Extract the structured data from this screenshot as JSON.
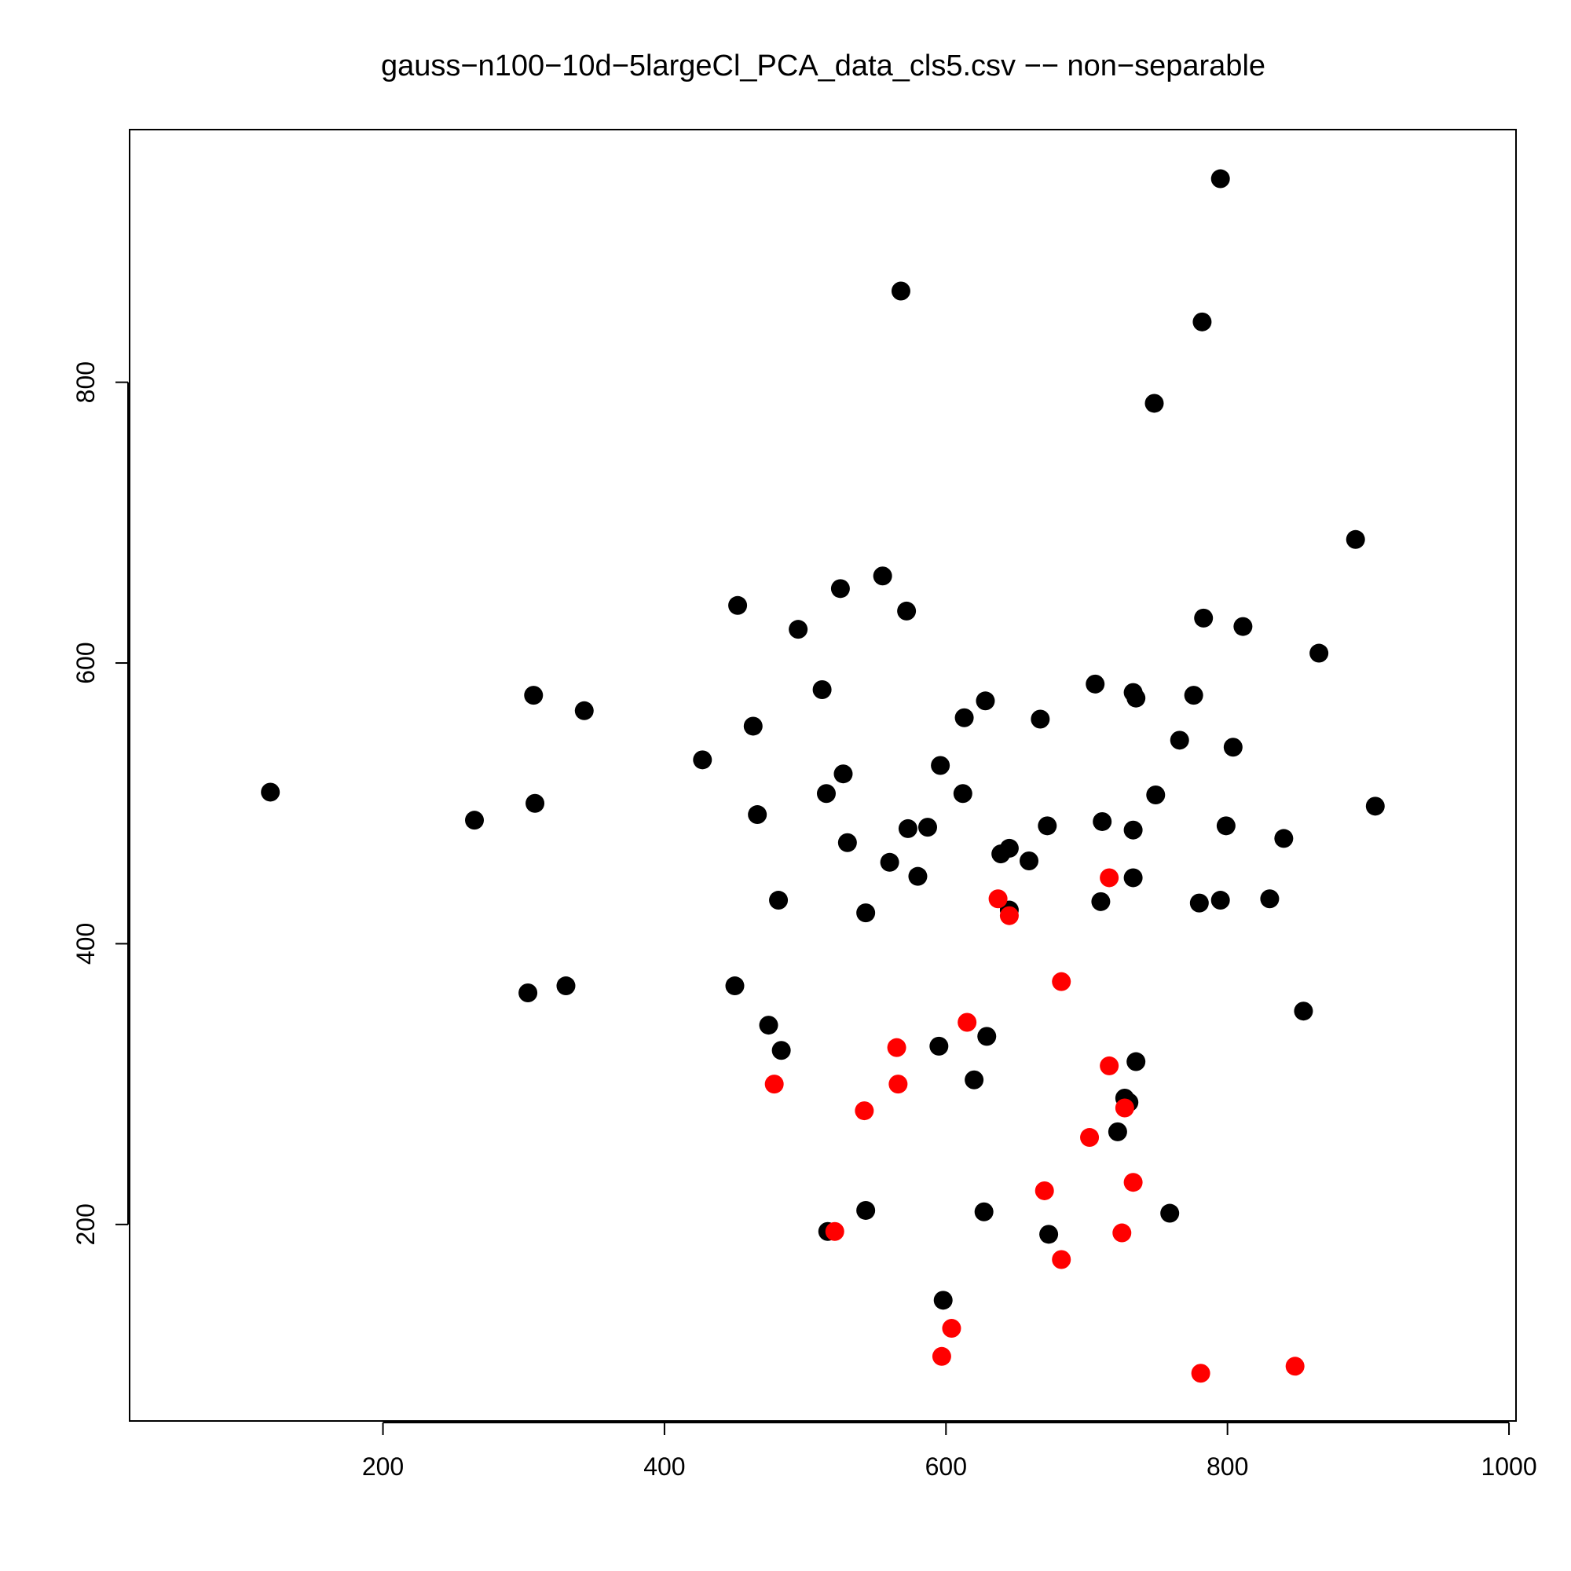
{
  "chart_data": {
    "type": "scatter",
    "title": "gauss−n100−10d−5largeCl_PCA_data_cls5.csv  −−  non−separable",
    "xlabel": "",
    "ylabel": "",
    "xlim": [
      20,
      1005
    ],
    "ylim": [
      60,
      980
    ],
    "x_ticks": [
      200,
      400,
      600,
      800,
      1000
    ],
    "y_ticks": [
      200,
      400,
      600,
      800
    ],
    "grid": false,
    "series": [
      {
        "color": "#000000",
        "points": [
          [
            795,
            945
          ],
          [
            568,
            865
          ],
          [
            782,
            843
          ],
          [
            748,
            785
          ],
          [
            891,
            688
          ],
          [
            555,
            662
          ],
          [
            525,
            653
          ],
          [
            452,
            641
          ],
          [
            572,
            637
          ],
          [
            783,
            632
          ],
          [
            811,
            626
          ],
          [
            495,
            624
          ],
          [
            865,
            607
          ],
          [
            706,
            585
          ],
          [
            512,
            581
          ],
          [
            307,
            577
          ],
          [
            733,
            579
          ],
          [
            776,
            577
          ],
          [
            735,
            575
          ],
          [
            628,
            573
          ],
          [
            343,
            566
          ],
          [
            613,
            561
          ],
          [
            667,
            560
          ],
          [
            463,
            555
          ],
          [
            766,
            545
          ],
          [
            804,
            540
          ],
          [
            427,
            531
          ],
          [
            596,
            527
          ],
          [
            527,
            521
          ],
          [
            120,
            508
          ],
          [
            515,
            507
          ],
          [
            612,
            507
          ],
          [
            749,
            506
          ],
          [
            308,
            500
          ],
          [
            905,
            498
          ],
          [
            466,
            492
          ],
          [
            265,
            488
          ],
          [
            711,
            487
          ],
          [
            672,
            484
          ],
          [
            587,
            483
          ],
          [
            573,
            482
          ],
          [
            733,
            481
          ],
          [
            799,
            484
          ],
          [
            840,
            475
          ],
          [
            530,
            472
          ],
          [
            645,
            468
          ],
          [
            639,
            464
          ],
          [
            659,
            459
          ],
          [
            560,
            458
          ],
          [
            733,
            447
          ],
          [
            580,
            448
          ],
          [
            481,
            431
          ],
          [
            710,
            430
          ],
          [
            780,
            429
          ],
          [
            795,
            431
          ],
          [
            830,
            432
          ],
          [
            645,
            424
          ],
          [
            543,
            422
          ],
          [
            450,
            370
          ],
          [
            330,
            370
          ],
          [
            303,
            365
          ],
          [
            854,
            352
          ],
          [
            474,
            342
          ],
          [
            629,
            334
          ],
          [
            483,
            324
          ],
          [
            595,
            327
          ],
          [
            735,
            316
          ],
          [
            620,
            303
          ],
          [
            727,
            290
          ],
          [
            730,
            287
          ],
          [
            722,
            266
          ],
          [
            543,
            210
          ],
          [
            627,
            209
          ],
          [
            759,
            208
          ],
          [
            516,
            195
          ],
          [
            673,
            193
          ],
          [
            598,
            146
          ]
        ]
      },
      {
        "color": "#ff0000",
        "points": [
          [
            716,
            447
          ],
          [
            637,
            432
          ],
          [
            645,
            420
          ],
          [
            682,
            373
          ],
          [
            615,
            344
          ],
          [
            565,
            326
          ],
          [
            716,
            313
          ],
          [
            478,
            300
          ],
          [
            566,
            300
          ],
          [
            727,
            283
          ],
          [
            542,
            281
          ],
          [
            702,
            262
          ],
          [
            733,
            230
          ],
          [
            670,
            224
          ],
          [
            521,
            195
          ],
          [
            725,
            194
          ],
          [
            682,
            175
          ],
          [
            604,
            126
          ],
          [
            597,
            106
          ],
          [
            848,
            99
          ],
          [
            781,
            94
          ]
        ]
      }
    ]
  }
}
